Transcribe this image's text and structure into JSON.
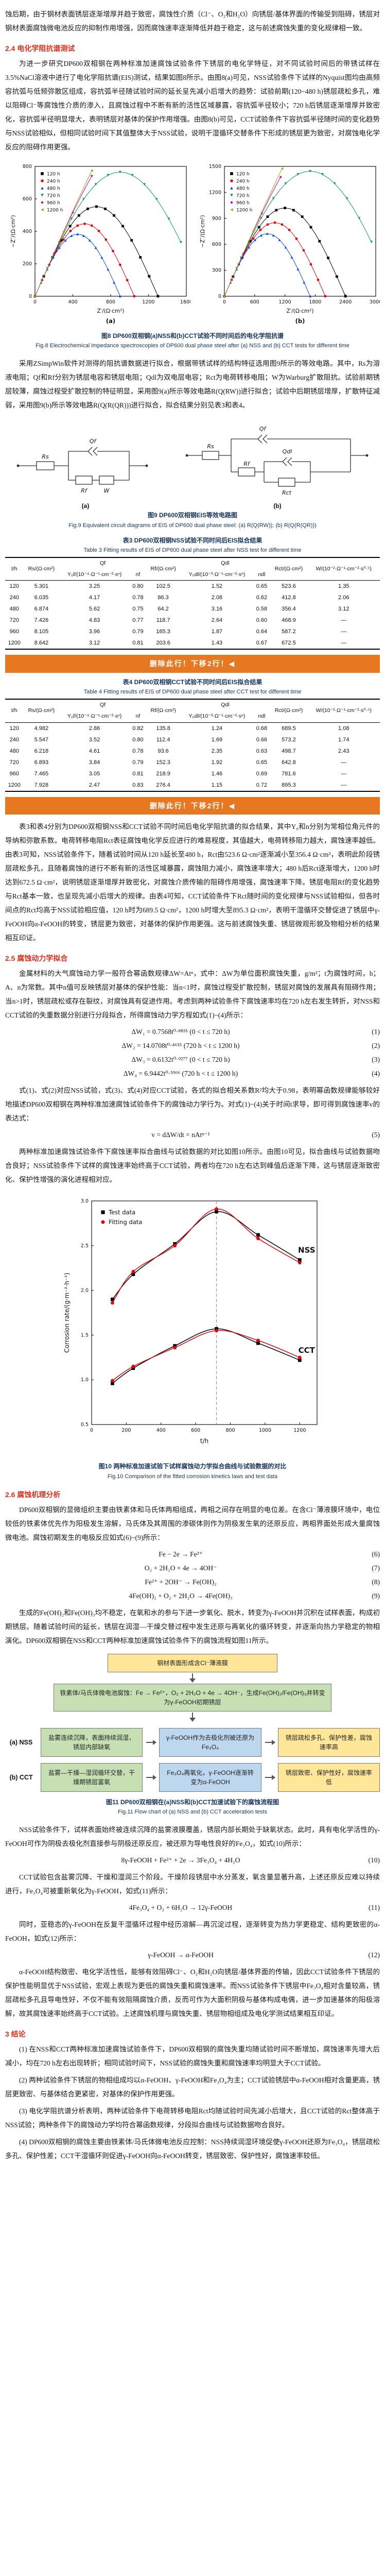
{
  "colors": {
    "heading_red": "#e0301e",
    "caption_blue": "#17365d",
    "banner_orange": "#e87722",
    "flow_green": "#c6e0b4",
    "flow_yellow": "#ffe699",
    "flow_blue": "#bdd7ee"
  },
  "doc": {
    "p_top": "蚀后期，由于钢材表面锈层逐渐增厚并趋于致密，腐蚀性介质（Cl⁻、O₂和H₂O）向锈层/基体界面的传输受到阻碍，锈层对钢材表面腐蚀微电池反应的抑制作用增强，因而腐蚀速率逐渐降低并趋于稳定，这与前述腐蚀失重的变化规律相一致。",
    "s24": {
      "heading": "2.4 电化学阻抗谱测试",
      "p1": "为进一步研究DP600双相钢在两种标准加速腐蚀试验条件下锈层的电化学特征，对不同试验时间后的带锈试样在3.5%NaCl溶液中进行了电化学阻抗谱(EIS)测试，结果如图8所示。由图8(a)可见，NSS试验条件下试样的Nyquist图均由高频容抗弧与低频弥散区组成，容抗弧半径随试验时间的延长呈先减小后增大的趋势：试验前期(120~480 h)锈层疏松多孔，难以阻碍Cl⁻等腐蚀性介质的渗入，且腐蚀过程中不断有新的活性区域暴露，容抗弧半径较小；720 h后锈层逐渐增厚并致密化，容抗弧半径明显增大，表明锈层对基体的保护作用增强。由图8(b)可见，CCT试验条件下容抗弧半径随时间的变化趋势与NSS试验相似，但相同试验时间下其值整体大于NSS试验，说明干湿循环交替条件下形成的锈层更为致密，对腐蚀电化学反应的阻碍作用更强。"
    },
    "fig8": {
      "caption_cn": "图8 DP600双相钢(a)NSS和(b)CCT试验不同时间后的电化学阻抗谱",
      "caption_en": "Fig.8 Electrochemical impedance spectroscopies of DP600 dual phase steel after (a) NSS and (b) CCT tests for different time"
    },
    "p2": "采用ZSimpWin软件对测得的阻抗谱数据进行拟合，根据带锈试样的结构特征选用图9所示的等效电路。其中，Rs为溶液电阻；Qf和Rf分别为锈层电容和锈层电阻；Qdl为双电层电容；Rct为电荷转移电阻；W为Warburg扩散阻抗。试验前期锈层较薄，腐蚀过程受扩散控制的特征明显，采用图9(a)所示等效电路R(Q(RW))进行拟合；试验中后期锈层增厚，扩散特征减弱，采用图9(b)所示等效电路R(Q(R(QR)))进行拟合，拟合结果分别见表3和表4。",
    "fig9cap": {
      "cn": "图9 DP600双相钢EIS等效电路图",
      "en": "Fig.9 Equivalent circuit diagrams of EIS of DP600 dual phase steel: (a) R(Q(RW)); (b) R(Q(R(QR)))"
    },
    "editor_note": "删除此行！下移2行！◀",
    "p3": "表3和表4分别为DP600双相钢NSS和CCT试验不同时间后电化学阻抗谱的拟合结果，其中Y₀和n分别为常相位角元件的导纳和弥散系数。电荷转移电阻Rct表征腐蚀电化学反应进行的难易程度，其值越大，电荷转移阻力越大，腐蚀速率越低。由表3可知，NSS试验条件下，随着试验时间从120 h延长至480 h，Rct由523.6 Ω·cm²逐渐减小至356.4 Ω·cm²，表明此阶段锈层疏松多孔，且随着腐蚀的进行不断有新的活性区域暴露，腐蚀阻力减小，腐蚀速率增大；480 h后Rct逐渐增大，1200 h时达到672.5 Ω·cm²，说明锈层逐渐增厚并致密化，对腐蚀介质传输的阻碍作用增强，腐蚀速率下降。锈层电阻Rf的变化趋势与Rct基本一致，也呈现先减小后增大的规律。由表4可知，CCT试验条件下Rct随时间的变化规律与NSS试验相似，但各时间点的Rct均高于NSS试验相应值，120 h时为689.5 Ω·cm²，1200 h时增大至895.3 Ω·cm²，表明干湿循环交替促进了锈层中γ-FeOOH向α-FeOOH的转变，锈层更为致密，对基体的保护作用更强。这与前述腐蚀失重、锈层微观形貌及物相分析的结果相互印证。",
    "s25": {
      "heading": "2.5 腐蚀动力学拟合",
      "p_a": "金属材料的大气腐蚀动力学一般符合幂函数规律ΔW=Atⁿ，式中：ΔW为单位面积腐蚀失重，g/m²；t为腐蚀时间，h；A、n为常数。其中n值可反映锈层对基体的保护性能：当n<1时，腐蚀过程受扩散控制，锈层对腐蚀的发展具有阻碍作用；当n>1时，锈层疏松或存在裂纹，对腐蚀具有促进作用。考虑到两种试验条件下腐蚀速率均在720 h左右发生转折，对NSS和CCT试验的失重数据分别进行分段拟合，所得腐蚀动力学方程如式(1)~(4)所示：",
      "p_b": "式(1)、式(2)对应NSS试验，式(3)、式(4)对应CCT试验，各式的拟合相关系数R²均大于0.98，表明幂函数规律能够较好地描述DP600双相钢在两种标准加速腐蚀试验条件下的腐蚀动力学行为。对式(1)~(4)关于时间t求导，即可得到腐蚀速率v的表达式：",
      "p_c": "两种标准加速腐蚀试验条件下腐蚀速率拟合曲线与试验数据的对比如图10所示。由图10可见，拟合曲线与试验数据吻合良好；NSS试验条件下试样的腐蚀速率始终高于CCT试验，两者均在720 h左右达到峰值后逐渐下降，这与锈层逐渐致密化、保护性增强的演化进程相对应。"
    },
    "fig10cap": {
      "cn": "图10 两种标准加速试验下试样腐蚀动力学拟合曲线与试验数据的对比",
      "en": "Fig.10 Comparison of the fitted corrosion kinetics laws and test data"
    },
    "s26": {
      "heading": "2.6 腐蚀机理分析",
      "p_a": "DP600双相钢的显微组织主要由铁素体和马氏体两相组成，两相之间存在明显的电位差。在含Cl⁻薄液膜环境中，电位较低的铁素体优先作为阳极发生溶解，马氏体及其周围的渗碳体则作为阴极发生氧的还原反应，两相界面处形成大量腐蚀微电池。腐蚀初期发生的电极反应如式(6)~(9)所示：",
      "p_b": "生成的Fe(OH)₂和Fe(OH)₃均不稳定，在氧和水的参与下进一步氧化、脱水，转变为γ-FeOOH并沉积在试样表面，构成初期锈层。随着试验时间的延长，锈层在润湿—干燥交替过程中发生还原与再氧化的循环转变，并逐渐向热力学稳定的物相演化。DP600双相钢在NSS和CCT两种标准加速腐蚀试验条件下的腐蚀流程如图11所示。",
      "p_c": "NSS试验条件下，试样表面始终被连续沉降的盐雾液膜覆盖，锈层内部长期处于缺氧状态。此时，具有电化学活性的γ-FeOOH可作为阴极去极化剂直接参与阴极还原反应，被还原为导电性良好的Fe₃O₄，如式(10)所示：",
      "p_d": "CCT试验包含盐雾沉降、干燥和湿润三个阶段。干燥阶段锈层中水分蒸发，氧含量显著升高，上述还原反应难以持续进行，Fe₃O₄可被重新氧化为γ-FeOOH，如式(11)所示：",
      "p_e": "同时，亚稳态的γ-FeOOH在反复干湿循环过程中经历溶解—再沉淀过程，逐渐转变为热力学更稳定、结构更致密的α-FeOOH，如式(12)所示：",
      "p_f": "α-FeOOH结构致密、电化学活性低，能够有效阻碍Cl⁻、O₂和H₂O向锈层/基体界面的传输，因此CCT试验条件下锈层的保护性能明显优于NSS试验，宏观上表现为更低的腐蚀失重和腐蚀速率。而NSS试验条件下锈层中Fe₃O₄相对含量较高，锈层疏松多孔且导电性好，不仅不能有效阻隔腐蚀介质，反而可作为大面积阴极与基体构成电偶，进一步加速基体的阳极溶解，故其腐蚀速率始终高于CCT试验。上述腐蚀机理与腐蚀失重、锈层物相组成及电化学测试结果相互印证。"
    },
    "fig11cap": {
      "cn": "图11 DP600双相钢在(a)NSS和(b)CCT加速试验下的腐蚀流程图",
      "en": "Fig.11 Flow chart of (a) NSS and (b) CCT acceleration tests"
    },
    "s3": {
      "heading": "3 结论",
      "items": [
        "(1) 在NSS和CCT两种标准加速腐蚀试验条件下，DP600双相钢的腐蚀失重均随试验时间不断增加，腐蚀速率先增大后减小，均在720 h左右出现转折；相同试验时间下，NSS试验的腐蚀失重和腐蚀速率均明显大于CCT试验。",
        "(2) 两种试验条件下锈层的物相组成均以α-FeOOH、γ-FeOOH和Fe₃O₄为主；CCT试验锈层中α-FeOOH相对含量更高，锈层更致密、与基体结合更紧密，对基体的保护作用更强。",
        "(3) 电化学阻抗谱分析表明，两种试验条件下电荷转移电阻Rct均随试验时间先减小后增大，且CCT试验的Rct整体高于NSS试验；两种条件下的腐蚀动力学均符合幂函数规律，分段拟合曲线与试验数据吻合良好。",
        "(4) DP600双相钢的腐蚀主要由铁素体/马氏体微电池反应控制：NSS持续润湿环境促使γ-FeOOH还原为Fe₃O₄，锈层疏松多孔、保护性差；CCT干湿循环则促进γ-FeOOH向α-FeOOH转变，锈层致密、保护性好，腐蚀速率较低。"
      ]
    }
  },
  "fig9": {
    "a": {
      "rs": "Rs",
      "q": "Qf",
      "r": "Rf",
      "w": "W",
      "panel": "(a)"
    },
    "b": {
      "rs": "Rs",
      "q1": "Qf",
      "r1": "Rf",
      "q2": "Qdl",
      "r2": "Rct",
      "panel": "(b)"
    }
  },
  "fig11": {
    "top": "钢材表面形成含Cl⁻薄液膜",
    "mid": "铁素体/马氏体微电池腐蚀：Fe → Fe²⁺，O₂ + 2H₂O + 4e → 4OH⁻，生成Fe(OH)₂/Fe(OH)₃并转变为γ-FeOOH初期锈层",
    "a": {
      "label": "(a) NSS",
      "boxes": [
        "盐雾连续沉降，表面持续润湿，锈层内部缺氧",
        "γ-FeOOH作为去极化剂被还原为Fe₃O₄",
        "锈层疏松多孔、保护性差，腐蚀速率高"
      ]
    },
    "b": {
      "label": "(b) CCT",
      "boxes": [
        "盐雾—干燥—湿润循环交替，干燥期锈层富氧",
        "Fe₃O₄再氧化，γ-FeOOH逐渐转变为α-FeOOH",
        "锈层致密、保护性好，腐蚀速率低"
      ]
    }
  },
  "tables": {
    "headers": {
      "t": "t/h",
      "rs": "Rs/(Ω·cm²)",
      "qf": "Qf",
      "y0f": "Y₀f/(10⁻⁴·Ω⁻¹·cm⁻²·sⁿ)",
      "nf": "nf",
      "rf": "Rf/(Ω·cm²)",
      "qdl": "Qdl",
      "y0dl": "Y₀dl/(10⁻³·Ω⁻¹·cm⁻²·sⁿ)",
      "ndl": "ndl",
      "rct": "Rct/(Ω·cm²)",
      "w": "W/(10⁻²·Ω⁻¹·cm⁻²·s⁰·⁵)"
    },
    "t3": {
      "title_cn": "表3 DP600双相钢NSS试验不同时间后EIS拟合结果",
      "title_en": "Table 3 Fitting results of EIS of DP600 dual phase steel after NSS test for different time",
      "rows": [
        [
          "120",
          "5.301",
          "3.25",
          "0.80",
          "102.5",
          "1.52",
          "0.65",
          "523.6",
          "1.35"
        ],
        [
          "240",
          "6.035",
          "4.17",
          "0.78",
          "86.3",
          "2.08",
          "0.62",
          "412.8",
          "2.06"
        ],
        [
          "480",
          "6.874",
          "5.62",
          "0.75",
          "64.2",
          "3.16",
          "0.58",
          "356.4",
          "3.12"
        ],
        [
          "720",
          "7.426",
          "4.83",
          "0.77",
          "118.7",
          "2.64",
          "0.60",
          "468.9",
          "—"
        ],
        [
          "960",
          "8.105",
          "3.96",
          "0.79",
          "165.3",
          "1.87",
          "0.64",
          "587.2",
          "—"
        ],
        [
          "1200",
          "8.642",
          "3.12",
          "0.81",
          "203.6",
          "1.43",
          "0.67",
          "672.5",
          "—"
        ]
      ]
    },
    "t4": {
      "title_cn": "表4 DP600双相钢CCT试验不同时间后EIS拟合结果",
      "title_en": "Table 4 Fitting results of EIS of DP600 dual phase steel after CCT test for different time",
      "rows": [
        [
          "120",
          "4.982",
          "2.86",
          "0.82",
          "135.8",
          "1.24",
          "0.68",
          "689.5",
          "1.08"
        ],
        [
          "240",
          "5.547",
          "3.52",
          "0.80",
          "112.4",
          "1.69",
          "0.66",
          "573.2",
          "1.74"
        ],
        [
          "480",
          "6.218",
          "4.61",
          "0.78",
          "93.6",
          "2.35",
          "0.63",
          "498.7",
          "2.43"
        ],
        [
          "720",
          "6.893",
          "3.84",
          "0.79",
          "152.3",
          "1.92",
          "0.65",
          "642.8",
          "—"
        ],
        [
          "960",
          "7.465",
          "3.05",
          "0.81",
          "218.9",
          "1.46",
          "0.69",
          "781.6",
          "—"
        ],
        [
          "1200",
          "7.928",
          "2.47",
          "0.83",
          "276.4",
          "1.15",
          "0.72",
          "895.3",
          "—"
        ]
      ]
    }
  },
  "equations": [
    {
      "body": "ΔW₁ = 0.7568t⁰·⁸⁸³⁵ (0 < t ≤ 720 h)",
      "num": "(1)"
    },
    {
      "body": "ΔW₂ = 14.0708t⁰·⁴⁶⁵⁵ (720 h < t ≤ 1200 h)",
      "num": "(2)"
    },
    {
      "body": "ΔW₃ = 0.6132t⁰·⁹²⁷⁷ (0 < t ≤ 720 h)",
      "num": "(3)"
    },
    {
      "body": "ΔW₄ = 6.9442t⁰·⁵⁹⁶⁶ (720 h < t ≤ 1200 h)",
      "num": "(4)"
    },
    {
      "body": "v = dΔW/dt = nAtⁿ⁻¹",
      "num": "(5)"
    },
    {
      "body": "Fe − 2e → Fe²⁺",
      "num": "(6)"
    },
    {
      "body": "O₂ + 2H₂O + 4e → 4OH⁻",
      "num": "(7)"
    },
    {
      "body": "Fe²⁺ + 2OH⁻ → Fe(OH)₂",
      "num": "(8)"
    },
    {
      "body": "4Fe(OH)₂ + O₂ + 2H₂O → 4Fe(OH)₃",
      "num": "(9)"
    },
    {
      "body": "8γ-FeOOH + Fe²⁺ + 2e → 3Fe₃O₄ + 4H₂O",
      "num": "(10)"
    },
    {
      "body": "4Fe₃O₄ + O₂ + 6H₂O → 12γ-FeOOH",
      "num": "(11)"
    },
    {
      "body": "γ-FeOOH → α-FeOOH",
      "num": "(12)"
    }
  ],
  "chart_data": [
    {
      "id": "fig8a",
      "type": "scatter",
      "title": "(a)",
      "xlabel": "Z′/(Ω·cm²)",
      "ylabel": "−Z″/(Ω·cm²)",
      "xlim": [
        0,
        1600
      ],
      "ylim": [
        0,
        800
      ],
      "xticks": [
        0,
        400,
        800,
        1200,
        1600
      ],
      "yticks": [
        0,
        200,
        400,
        600,
        800
      ],
      "note": "Nyquist capacitive arcs; arc_diameter is the chord of each depressed semicircle on the Z axis, Ω·cm²",
      "series": [
        {
          "name": "120 h",
          "color": "#000000",
          "marker": "s",
          "arc_diameter": 1300
        },
        {
          "name": "240 h",
          "color": "#e8000b",
          "marker": "o",
          "arc_diameter": 1050
        },
        {
          "name": "480 h",
          "color": "#0048ff",
          "marker": "^",
          "arc_diameter": 900
        },
        {
          "name": "720 h",
          "color": "#00a050",
          "marker": "v",
          "arc_diameter": 1800
        },
        {
          "name": "960 h",
          "color": "#c000c0",
          "marker": "d",
          "arc_diameter": 2800
        },
        {
          "name": "1200 h",
          "color": "#c89000",
          "marker": "<",
          "arc_diameter": 4200
        }
      ]
    },
    {
      "id": "fig8b",
      "type": "scatter",
      "title": "(b)",
      "xlabel": "Z′/(Ω·cm²)",
      "ylabel": "−Z″/(Ω·cm²)",
      "xlim": [
        0,
        3000
      ],
      "ylim": [
        0,
        1500
      ],
      "xticks": [
        0,
        600,
        1200,
        1800,
        2400,
        3000
      ],
      "yticks": [
        0,
        300,
        600,
        900,
        1200,
        1500
      ],
      "series": [
        {
          "name": "120 h",
          "color": "#000000",
          "marker": "s",
          "arc_diameter": 2400
        },
        {
          "name": "240 h",
          "color": "#e8000b",
          "marker": "o",
          "arc_diameter": 2000
        },
        {
          "name": "480 h",
          "color": "#0048ff",
          "marker": "^",
          "arc_diameter": 1700
        },
        {
          "name": "720 h",
          "color": "#00a050",
          "marker": "v",
          "arc_diameter": 3400
        },
        {
          "name": "960 h",
          "color": "#c000c0",
          "marker": "d",
          "arc_diameter": 5200
        },
        {
          "name": "1200 h",
          "color": "#c89000",
          "marker": "<",
          "arc_diameter": 8000
        }
      ]
    },
    {
      "id": "fig10",
      "type": "line",
      "xlabel": "t/h",
      "ylabel": "Corrosion rate/(g·m⁻²·h⁻¹)",
      "xlim": [
        0,
        1300
      ],
      "ylim": [
        0.5,
        3.0
      ],
      "xticks": [
        0,
        200,
        400,
        600,
        800,
        1000,
        1200
      ],
      "yticks": [
        0.5,
        1.0,
        1.5,
        2.0,
        2.5,
        3.0
      ],
      "vline": 720,
      "x": [
        120,
        240,
        480,
        720,
        960,
        1200
      ],
      "series": [
        {
          "name": "NSS test data",
          "group": "NSS",
          "role": "test",
          "color": "#000000",
          "marker": "s",
          "values": [
            1.9,
            2.18,
            2.52,
            2.88,
            2.62,
            2.34
          ]
        },
        {
          "name": "NSS fitting data",
          "group": "NSS",
          "role": "fit",
          "color": "#e8000b",
          "marker": "o",
          "values": [
            1.86,
            2.21,
            2.5,
            2.91,
            2.58,
            2.31
          ]
        },
        {
          "name": "CCT test data",
          "group": "CCT",
          "role": "test",
          "color": "#000000",
          "marker": "s",
          "values": [
            0.96,
            1.13,
            1.38,
            1.57,
            1.41,
            1.22
          ]
        },
        {
          "name": "CCT fitting data",
          "group": "CCT",
          "role": "fit",
          "color": "#e8000b",
          "marker": "o",
          "values": [
            0.99,
            1.15,
            1.36,
            1.55,
            1.44,
            1.25
          ]
        }
      ],
      "legend": [
        {
          "label": "Test data",
          "color": "#000000",
          "marker": "s"
        },
        {
          "label": "Fitting data",
          "color": "#e8000b",
          "marker": "o"
        }
      ],
      "annotations": [
        {
          "text": "NSS",
          "x": 1240,
          "y": 2.42
        },
        {
          "text": "CCT",
          "x": 1240,
          "y": 1.3
        }
      ]
    }
  ]
}
